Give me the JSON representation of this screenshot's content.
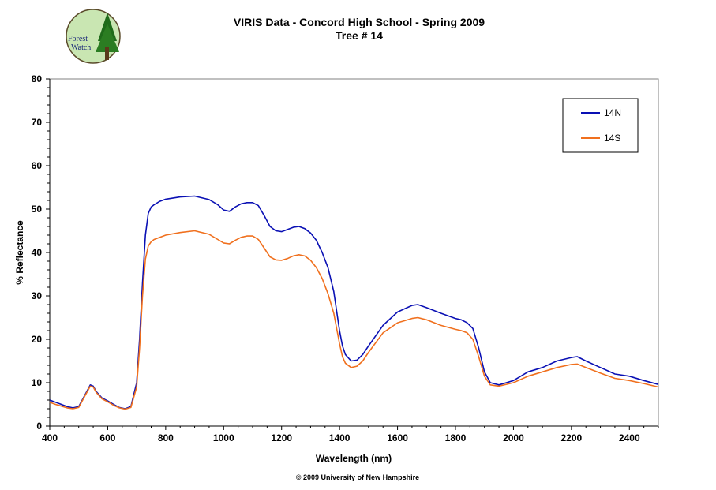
{
  "logo": {
    "line1": "Forest",
    "line2": "Watch"
  },
  "footer": "© 2009 University of New Hampshire",
  "chart_data": {
    "type": "line",
    "title": "VIRIS Data - Concord High School - Spring 2009",
    "subtitle": "Tree # 14",
    "xlabel": "Wavelength (nm)",
    "ylabel": "% Reflectance",
    "xlim": [
      400,
      2500
    ],
    "ylim": [
      0,
      80
    ],
    "xticks": [
      400,
      600,
      800,
      1000,
      1200,
      1400,
      1600,
      1800,
      2000,
      2200,
      2400
    ],
    "yticks": [
      0,
      10,
      20,
      30,
      40,
      50,
      60,
      70,
      80
    ],
    "grid": false,
    "legend": "top-right",
    "series": [
      {
        "name": "14N",
        "color": "#0a10b4",
        "x": [
          400,
          420,
          440,
          460,
          480,
          500,
          520,
          540,
          550,
          560,
          580,
          600,
          620,
          640,
          660,
          680,
          700,
          710,
          720,
          730,
          740,
          750,
          760,
          780,
          800,
          850,
          900,
          950,
          980,
          1000,
          1020,
          1040,
          1060,
          1080,
          1100,
          1120,
          1140,
          1160,
          1180,
          1200,
          1220,
          1240,
          1260,
          1280,
          1300,
          1320,
          1340,
          1360,
          1380,
          1400,
          1410,
          1420,
          1440,
          1460,
          1480,
          1500,
          1550,
          1600,
          1650,
          1670,
          1700,
          1750,
          1800,
          1820,
          1840,
          1860,
          1880,
          1900,
          1920,
          1950,
          2000,
          2050,
          2100,
          2150,
          2200,
          2220,
          2250,
          2300,
          2350,
          2400,
          2450,
          2500
        ],
        "y": [
          6,
          5.5,
          5,
          4.5,
          4.2,
          4.5,
          7,
          9.5,
          9.2,
          8,
          6.5,
          5.8,
          5,
          4.3,
          4,
          4.5,
          10,
          20,
          33,
          44,
          49,
          50.5,
          51,
          51.8,
          52.3,
          52.8,
          53,
          52.2,
          51,
          49.8,
          49.5,
          50.5,
          51.2,
          51.5,
          51.5,
          50.8,
          48.5,
          46,
          45,
          44.8,
          45.3,
          45.8,
          46,
          45.5,
          44.5,
          42.8,
          40,
          36.5,
          31,
          22,
          18.5,
          16.5,
          15,
          15.2,
          16.5,
          18.5,
          23.2,
          26.3,
          27.8,
          28,
          27.3,
          26,
          24.8,
          24.5,
          23.8,
          22.5,
          18,
          12.5,
          10,
          9.5,
          10.5,
          12.5,
          13.5,
          15,
          15.8,
          16,
          15,
          13.5,
          12,
          11.5,
          10.5,
          9.6
        ]
      },
      {
        "name": "14S",
        "color": "#f0701e",
        "x": [
          400,
          420,
          440,
          460,
          480,
          500,
          520,
          540,
          550,
          560,
          580,
          600,
          620,
          640,
          660,
          680,
          700,
          710,
          720,
          730,
          740,
          750,
          760,
          780,
          800,
          850,
          900,
          950,
          980,
          1000,
          1020,
          1040,
          1060,
          1080,
          1100,
          1120,
          1140,
          1160,
          1180,
          1200,
          1220,
          1240,
          1260,
          1280,
          1300,
          1320,
          1340,
          1360,
          1380,
          1400,
          1410,
          1420,
          1440,
          1460,
          1480,
          1500,
          1550,
          1600,
          1650,
          1670,
          1700,
          1750,
          1800,
          1820,
          1840,
          1860,
          1880,
          1900,
          1920,
          1950,
          2000,
          2050,
          2100,
          2150,
          2200,
          2220,
          2250,
          2300,
          2350,
          2400,
          2450,
          2500
        ],
        "y": [
          5.5,
          5,
          4.6,
          4.2,
          4,
          4.3,
          6.8,
          9.2,
          9,
          7.8,
          6.3,
          5.6,
          4.8,
          4.2,
          3.9,
          4.3,
          9,
          18,
          30,
          38.5,
          41.5,
          42.5,
          43,
          43.5,
          44,
          44.6,
          45,
          44.2,
          43,
          42.2,
          42,
          42.8,
          43.5,
          43.8,
          43.8,
          43,
          41,
          39,
          38.3,
          38.2,
          38.6,
          39.2,
          39.5,
          39.2,
          38.2,
          36.5,
          34,
          30.5,
          26,
          19,
          16,
          14.5,
          13.5,
          13.8,
          15,
          17,
          21.5,
          23.8,
          24.8,
          25,
          24.5,
          23.2,
          22.3,
          22,
          21.5,
          20,
          16,
          11.5,
          9.5,
          9.2,
          10,
          11.5,
          12.5,
          13.5,
          14.2,
          14.3,
          13.5,
          12.2,
          11,
          10.5,
          9.8,
          9
        ]
      }
    ]
  }
}
